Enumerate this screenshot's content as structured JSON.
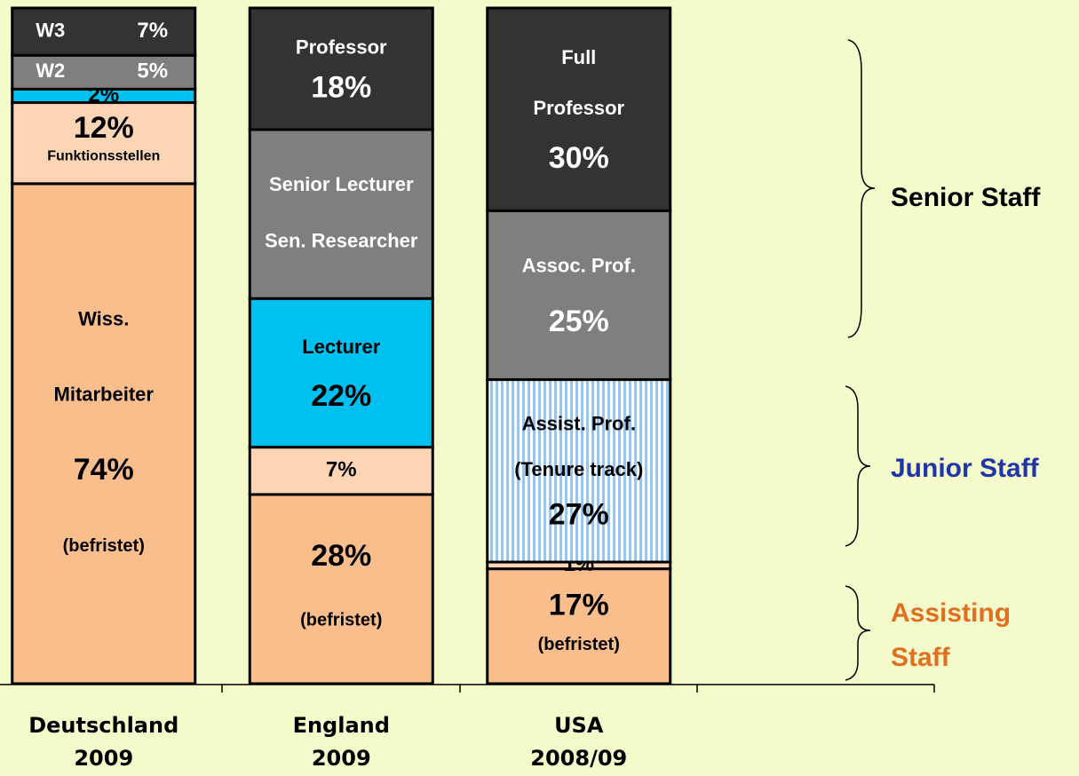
{
  "chart_data": {
    "type": "stacked-bar",
    "ylim": [
      0,
      100
    ],
    "categories": [
      [
        "Deutschland",
        "2009"
      ],
      [
        "England",
        "2009"
      ],
      [
        "USA",
        "2008/09"
      ]
    ],
    "bars": [
      {
        "segments": [
          {
            "value": 74,
            "value_label": "74%",
            "label_above": [
              "Wiss.",
              "Mitarbeiter"
            ],
            "label_below": [
              "(befristet)"
            ],
            "color": "#f9be8c",
            "text_color": "#000000"
          },
          {
            "value": 12,
            "value_label": "12%",
            "label_below": [
              "Funktionsstellen"
            ],
            "color": "#fcd5b5",
            "text_color": "#000000"
          },
          {
            "value": 2,
            "value_label": "2%",
            "color": "#00c0f0",
            "text_color": "#000000"
          },
          {
            "value": 5,
            "value_label": "5%",
            "label_above": [
              "W2"
            ],
            "color": "#7f7f7f",
            "text_color": "#ffffff"
          },
          {
            "value": 7,
            "value_label": "7%",
            "label_above": [
              "W3"
            ],
            "color": "#333333",
            "text_color": "#ffffff"
          }
        ]
      },
      {
        "segments": [
          {
            "value": 28,
            "value_label": "28%",
            "label_below": [
              "(befristet)"
            ],
            "color": "#f9be8c",
            "text_color": "#000000"
          },
          {
            "value": 7,
            "value_label": "7%",
            "color": "#fcd5b5",
            "text_color": "#000000"
          },
          {
            "value": 22,
            "value_label": "22%",
            "label_above": [
              "Lecturer"
            ],
            "color": "#00c0f0",
            "text_color": "#000000"
          },
          {
            "value": 25,
            "label_above": [
              "Senior Lecturer",
              "Sen. Researcher"
            ],
            "color": "#7f7f7f",
            "text_color": "#ffffff"
          },
          {
            "value": 18,
            "value_label": "18%",
            "label_above": [
              "Professor"
            ],
            "color": "#333333",
            "text_color": "#ffffff"
          }
        ]
      },
      {
        "segments": [
          {
            "value": 17,
            "value_label": "17%",
            "label_below": [
              "(befristet)"
            ],
            "color": "#f9be8c",
            "text_color": "#000000"
          },
          {
            "value": 1,
            "value_label": "1%",
            "color": "#fcd5b5",
            "text_color": "#000000"
          },
          {
            "value": 27,
            "value_label": "27%",
            "label_above": [
              "Assist. Prof.",
              "(Tenure track)"
            ],
            "color": "#9dc3e6",
            "hatch": "vertical",
            "text_color": "#000000"
          },
          {
            "value": 25,
            "value_label": "25%",
            "label_above": [
              "Assoc. Prof."
            ],
            "color": "#7f7f7f",
            "text_color": "#ffffff"
          },
          {
            "value": 30,
            "value_label": "30%",
            "label_above": [
              "Full",
              "Professor"
            ],
            "color": "#333333",
            "text_color": "#ffffff"
          }
        ]
      }
    ],
    "annotations": [
      {
        "text": [
          "Senior Staff"
        ],
        "color": "#000000"
      },
      {
        "text": [
          "Junior Staff"
        ],
        "color": "#1f35a8"
      },
      {
        "text": [
          "Assisting",
          "Staff"
        ],
        "color": "#e07020"
      }
    ]
  }
}
